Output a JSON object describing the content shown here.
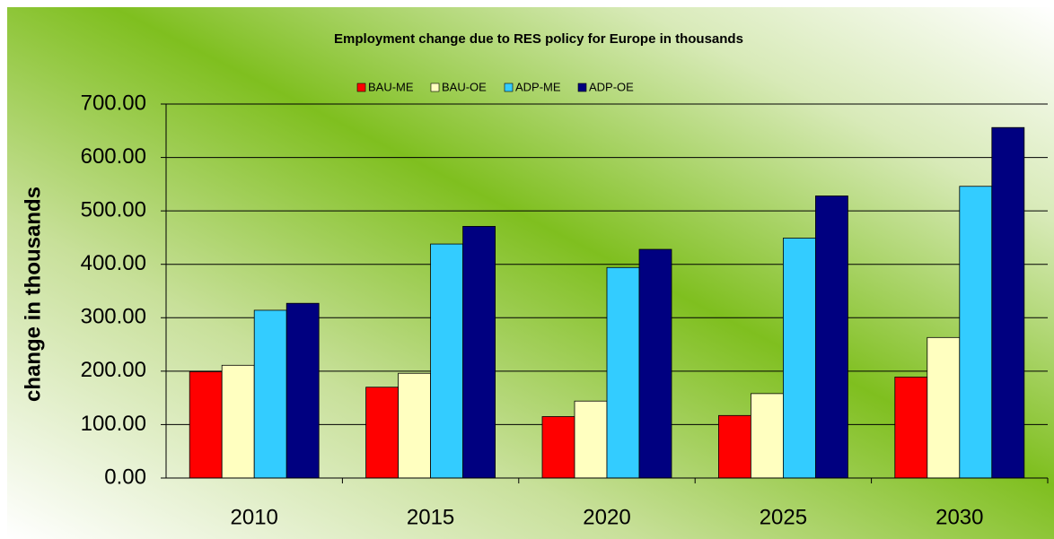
{
  "chart_data": {
    "type": "bar",
    "title": "Employment change due to RES policy for Europe in thousands",
    "y_label": "change in thousands",
    "categories": [
      "2010",
      "2015",
      "2020",
      "2025",
      "2030"
    ],
    "series": [
      {
        "name": "BAU-ME",
        "color": "#ff0000",
        "values": [
          199,
          170,
          115,
          117,
          189
        ]
      },
      {
        "name": "BAU-OE",
        "color": "#ffffc0",
        "values": [
          211,
          196,
          144,
          158,
          263
        ]
      },
      {
        "name": "ADP-ME",
        "color": "#33ccff",
        "values": [
          314,
          438,
          394,
          449,
          546
        ]
      },
      {
        "name": "ADP-OE",
        "color": "#000080",
        "values": [
          327,
          471,
          428,
          528,
          656
        ]
      }
    ],
    "ylim": [
      0,
      700
    ],
    "yticks": [
      {
        "value": 0,
        "label": "0.00"
      },
      {
        "value": 100,
        "label": "100.00"
      },
      {
        "value": 200,
        "label": "200.00"
      },
      {
        "value": 300,
        "label": "300.00"
      },
      {
        "value": 400,
        "label": "400.00"
      },
      {
        "value": 500,
        "label": "500.00"
      },
      {
        "value": 600,
        "label": "600.00"
      },
      {
        "value": 700,
        "label": "700.00"
      }
    ],
    "grid": true,
    "legend": "top"
  }
}
